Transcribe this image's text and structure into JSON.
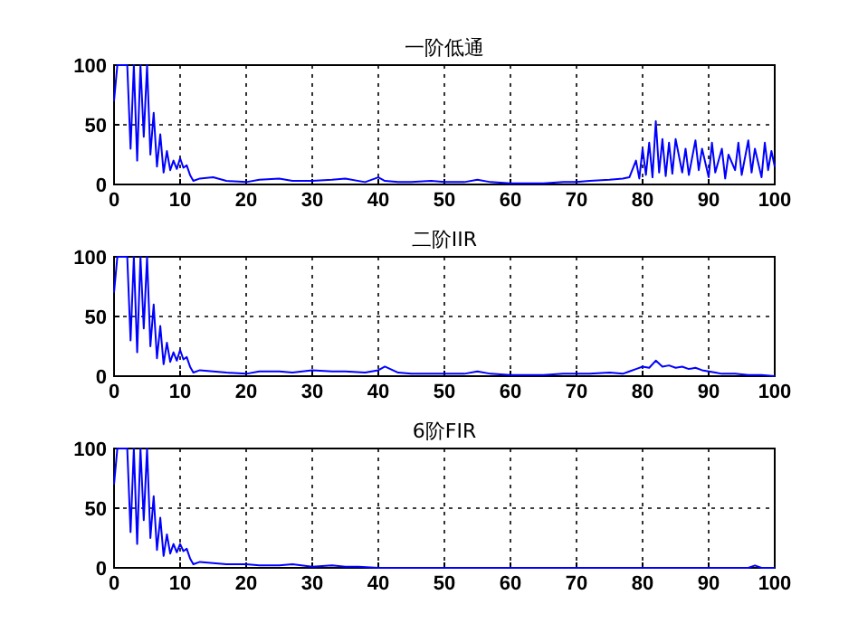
{
  "chart_data": [
    {
      "type": "line",
      "title": "一阶低通",
      "x": [
        0,
        0.5,
        1,
        1.5,
        2,
        2.5,
        3,
        3.5,
        4,
        4.5,
        5,
        5.5,
        6,
        6.5,
        7,
        7.5,
        8,
        8.5,
        9,
        9.5,
        10,
        10.5,
        11,
        11.5,
        12,
        13,
        15,
        17,
        20,
        22,
        25,
        27,
        30,
        33,
        35,
        38,
        40,
        41,
        43,
        45,
        48,
        50,
        53,
        55,
        57,
        60,
        63,
        65,
        68,
        70,
        72,
        75,
        77,
        78,
        79,
        79.5,
        80,
        80.5,
        81,
        81.5,
        82,
        82.5,
        83,
        83.5,
        84,
        84.5,
        85,
        86,
        86.5,
        87,
        88,
        88.5,
        89,
        90,
        90.5,
        91,
        92,
        92.5,
        93,
        94,
        94.5,
        95,
        96,
        96.5,
        97,
        98,
        98.5,
        99,
        99.5,
        100
      ],
      "values": [
        70,
        100,
        100,
        100,
        100,
        30,
        100,
        20,
        100,
        40,
        100,
        25,
        60,
        15,
        42,
        10,
        28,
        12,
        20,
        13,
        22,
        14,
        16,
        8,
        3,
        5,
        6,
        3,
        2,
        4,
        5,
        3,
        3,
        4,
        5,
        2,
        6,
        3,
        2,
        2,
        3,
        2,
        2,
        4,
        2,
        1,
        1,
        1,
        2,
        2,
        3,
        4,
        5,
        6,
        20,
        5,
        30,
        8,
        35,
        6,
        53,
        10,
        38,
        7,
        35,
        9,
        38,
        10,
        30,
        8,
        37,
        12,
        30,
        6,
        35,
        10,
        30,
        5,
        25,
        12,
        35,
        8,
        37,
        10,
        30,
        6,
        35,
        12,
        28,
        15
      ],
      "color": "#0000ff",
      "xlim": [
        0,
        100
      ],
      "ylim": [
        0,
        100
      ],
      "xticks": [
        0,
        10,
        20,
        30,
        40,
        50,
        60,
        70,
        80,
        90,
        100
      ],
      "yticks": [
        0,
        50,
        100
      ],
      "grid": true
    },
    {
      "type": "line",
      "title": "二阶IIR",
      "x": [
        0,
        0.5,
        1,
        1.5,
        2,
        2.5,
        3,
        3.5,
        4,
        4.5,
        5,
        5.5,
        6,
        6.5,
        7,
        7.5,
        8,
        8.5,
        9,
        9.5,
        10,
        10.5,
        11,
        11.5,
        12,
        13,
        15,
        17,
        20,
        22,
        25,
        27,
        30,
        33,
        35,
        38,
        40,
        41,
        43,
        45,
        48,
        50,
        53,
        55,
        57,
        60,
        63,
        65,
        68,
        70,
        72,
        75,
        77,
        78,
        79,
        80,
        81,
        82,
        83,
        84,
        85,
        86,
        87,
        88,
        89,
        90,
        91,
        92,
        94,
        96,
        98,
        100
      ],
      "values": [
        70,
        100,
        100,
        100,
        100,
        30,
        100,
        20,
        100,
        40,
        100,
        25,
        60,
        15,
        42,
        10,
        28,
        12,
        20,
        13,
        22,
        14,
        16,
        8,
        3,
        5,
        4,
        3,
        2,
        4,
        4,
        3,
        5,
        4,
        4,
        3,
        5,
        8,
        3,
        2,
        2,
        2,
        2,
        4,
        2,
        1,
        1,
        1,
        2,
        2,
        2,
        3,
        2,
        4,
        6,
        8,
        7,
        13,
        8,
        9,
        7,
        8,
        6,
        7,
        5,
        4,
        3,
        2,
        2,
        1,
        1,
        0
      ],
      "color": "#0000ff",
      "xlim": [
        0,
        100
      ],
      "ylim": [
        0,
        100
      ],
      "xticks": [
        0,
        10,
        20,
        30,
        40,
        50,
        60,
        70,
        80,
        90,
        100
      ],
      "yticks": [
        0,
        50,
        100
      ],
      "grid": true
    },
    {
      "type": "line",
      "title": "6阶FIR",
      "x": [
        0,
        0.5,
        1,
        1.5,
        2,
        2.5,
        3,
        3.5,
        4,
        4.5,
        5,
        5.5,
        6,
        6.5,
        7,
        7.5,
        8,
        8.5,
        9,
        9.5,
        10,
        10.5,
        11,
        11.5,
        12,
        13,
        15,
        17,
        20,
        22,
        25,
        27,
        30,
        33,
        35,
        37,
        40,
        50,
        60,
        70,
        80,
        90,
        96,
        97,
        98,
        100
      ],
      "values": [
        70,
        100,
        100,
        100,
        100,
        30,
        100,
        20,
        100,
        40,
        100,
        25,
        60,
        15,
        42,
        10,
        28,
        12,
        20,
        13,
        20,
        14,
        16,
        8,
        3,
        5,
        4,
        3,
        3,
        2,
        2,
        3,
        1,
        2,
        1,
        1,
        0,
        0,
        0,
        0,
        0,
        0,
        0,
        2,
        0,
        0
      ],
      "color": "#0000ff",
      "xlim": [
        0,
        100
      ],
      "ylim": [
        0,
        100
      ],
      "xticks": [
        0,
        10,
        20,
        30,
        40,
        50,
        60,
        70,
        80,
        90,
        100
      ],
      "yticks": [
        0,
        50,
        100
      ],
      "grid": true
    }
  ]
}
